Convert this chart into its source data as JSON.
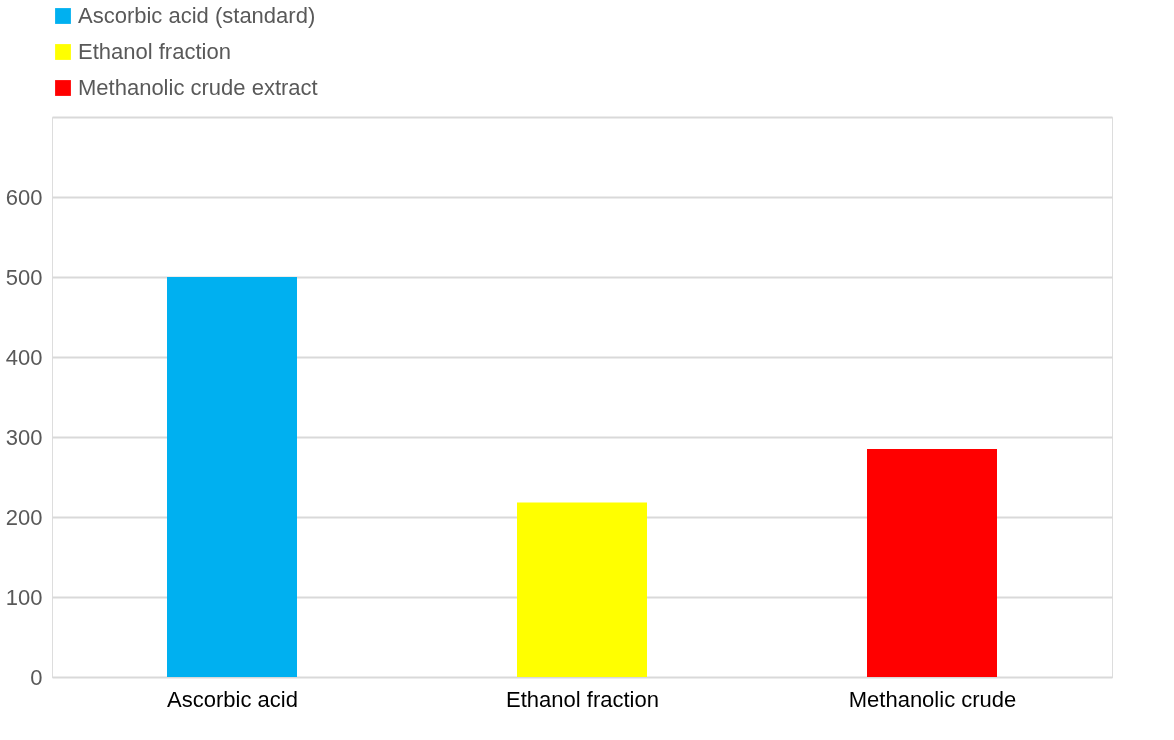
{
  "chart_data": {
    "type": "bar",
    "categories": [
      "Ascorbic acid",
      "Ethanol fraction",
      "Methanolic crude"
    ],
    "series": [
      {
        "name": "Ascorbic acid (standard)",
        "color": "#00b0f0",
        "values": [
          500,
          null,
          null
        ]
      },
      {
        "name": "Ethanol fraction",
        "color": "#ffff00",
        "values": [
          null,
          218,
          null
        ]
      },
      {
        "name": "Methanolic crude extract",
        "color": "#ff0000",
        "values": [
          null,
          null,
          285
        ]
      }
    ],
    "ylim": [
      0,
      700
    ],
    "yticks": [
      0,
      100,
      200,
      300,
      400,
      500,
      600,
      {
        "value": 700,
        "label": null
      }
    ],
    "grid": "y",
    "legend": "top"
  }
}
